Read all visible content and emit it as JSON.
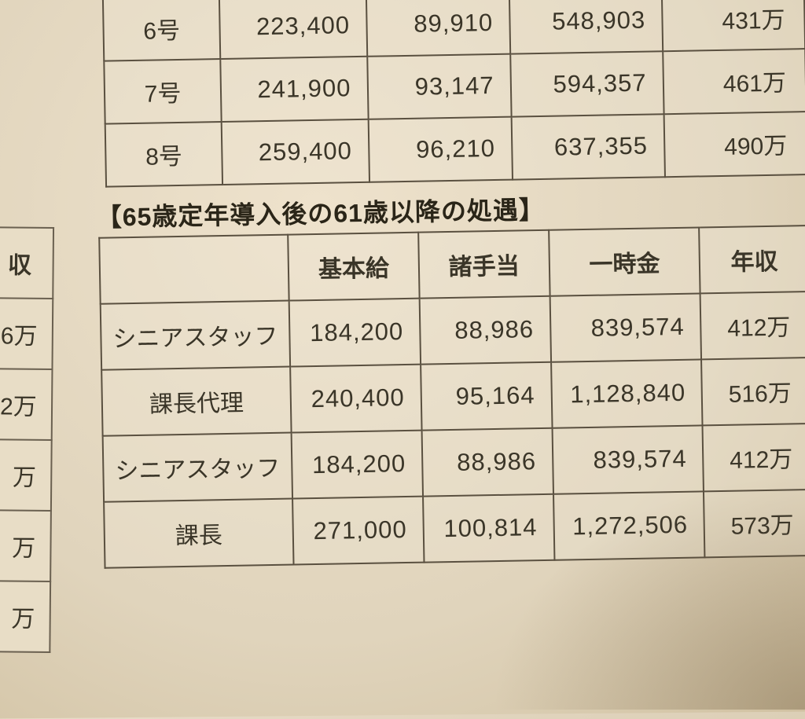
{
  "colors": {
    "paperLight": "#eee2cc",
    "paperMid": "#e0d4bc",
    "paperDark": "#d0c0a0",
    "border": "#5a5040",
    "text": "#3a3528"
  },
  "table1": {
    "rows": [
      {
        "label": "6号",
        "basic": "223,400",
        "allow": "89,910",
        "bonus": "548,903",
        "annual": "431万"
      },
      {
        "label": "7号",
        "basic": "241,900",
        "allow": "93,147",
        "bonus": "594,357",
        "annual": "461万"
      },
      {
        "label": "8号",
        "basic": "259,400",
        "allow": "96,210",
        "bonus": "637,355",
        "annual": "490万"
      }
    ],
    "columnWidths": [
      "140px",
      "160px",
      "160px",
      "170px",
      "160px"
    ]
  },
  "sectionTitle": "【65歳定年導入後の61歳以降の処遇】",
  "table2": {
    "headers": [
      "",
      "基本給",
      "諸手当",
      "一時金",
      "年収"
    ],
    "rows": [
      {
        "label": "シニアスタッフ",
        "basic": "184,200",
        "allow": "88,986",
        "bonus": "839,574",
        "annual": "412万"
      },
      {
        "label": "課長代理",
        "basic": "240,400",
        "allow": "95,164",
        "bonus": "1,128,840",
        "annual": "516万"
      },
      {
        "label": "シニアスタッフ",
        "basic": "184,200",
        "allow": "88,986",
        "bonus": "839,574",
        "annual": "412万"
      },
      {
        "label": "課長",
        "basic": "271,000",
        "allow": "100,814",
        "bonus": "1,272,506",
        "annual": "573万"
      }
    ]
  },
  "leftTable": {
    "header": "収",
    "rows": [
      "6万",
      "2万",
      "万",
      "万",
      "万"
    ]
  }
}
